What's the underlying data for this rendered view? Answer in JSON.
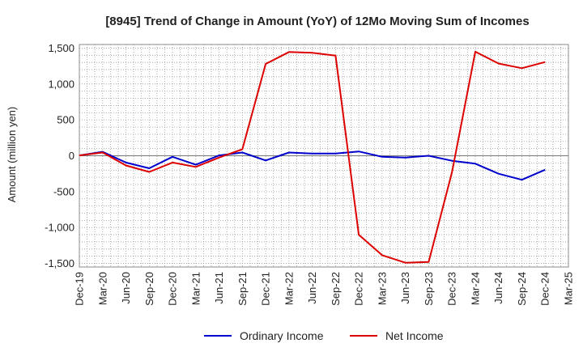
{
  "chart_data": {
    "type": "line",
    "title": "[8945]  Trend of Change in Amount (YoY) of 12Mo Moving Sum of Incomes",
    "ylabel": "Amount (million yen)",
    "xlabel": "",
    "ylim": [
      -1550,
      1550
    ],
    "yticks": [
      1500,
      1000,
      500,
      0,
      -500,
      -1000,
      -1500
    ],
    "ytick_labels": [
      "1,500",
      "1,000",
      "500",
      "0",
      "-500",
      "-1,000",
      "-1,500"
    ],
    "categories": [
      "Dec-19",
      "Mar-20",
      "Jun-20",
      "Sep-20",
      "Dec-20",
      "Mar-21",
      "Jun-21",
      "Sep-21",
      "Dec-21",
      "Mar-22",
      "Jun-22",
      "Sep-22",
      "Dec-22",
      "Mar-23",
      "Jun-23",
      "Sep-23",
      "Dec-23",
      "Mar-24",
      "Jun-24",
      "Sep-24",
      "Dec-24",
      "Mar-25"
    ],
    "grid": true,
    "legend_position": "bottom",
    "series": [
      {
        "name": "Ordinary Income",
        "color": "#0000cc",
        "values": [
          5,
          55,
          -95,
          -175,
          -15,
          -125,
          5,
          45,
          -65,
          45,
          30,
          30,
          60,
          -15,
          -25,
          0,
          -70,
          -110,
          -250,
          -335,
          -195,
          null
        ]
      },
      {
        "name": "Net Income",
        "color": "#dd0000",
        "values": [
          5,
          45,
          -135,
          -225,
          -95,
          -155,
          -25,
          90,
          1280,
          1445,
          1435,
          1395,
          -1100,
          -1385,
          -1490,
          -1480,
          -230,
          1450,
          1285,
          1220,
          1305,
          null
        ]
      }
    ]
  }
}
